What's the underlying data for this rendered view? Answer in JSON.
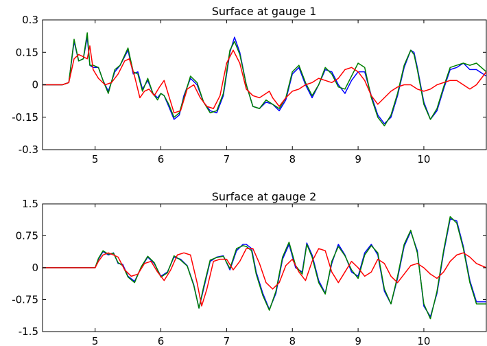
{
  "chart_data": [
    {
      "type": "line",
      "title": "Surface at gauge 1",
      "xlabel": "",
      "ylabel": "",
      "xlim": [
        4.2,
        10.95
      ],
      "ylim": [
        -0.3,
        0.3
      ],
      "xticks": [
        5,
        6,
        7,
        8,
        9,
        10
      ],
      "xtick_labels": [
        "5",
        "6",
        "7",
        "8",
        "9",
        "10"
      ],
      "yticks": [
        0.3,
        0.15,
        0,
        -0.15,
        -0.3
      ],
      "ytick_labels": [
        "0.3",
        "0.15",
        "0",
        "-0.15",
        "-0.3"
      ],
      "grid": false,
      "series": [
        {
          "color": "#0000ff",
          "x": [
            4.2,
            4.5,
            4.6,
            4.68,
            4.75,
            4.82,
            4.88,
            4.92,
            4.97,
            5.05,
            5.12,
            5.2,
            5.3,
            5.38,
            5.5,
            5.58,
            5.65,
            5.72,
            5.8,
            5.88,
            5.95,
            6.0,
            6.05,
            6.12,
            6.2,
            6.28,
            6.35,
            6.45,
            6.55,
            6.65,
            6.75,
            6.85,
            6.95,
            7.05,
            7.12,
            7.2,
            7.3,
            7.4,
            7.5,
            7.6,
            7.7,
            7.8,
            7.9,
            8.0,
            8.1,
            8.2,
            8.3,
            8.4,
            8.5,
            8.6,
            8.7,
            8.8,
            8.9,
            9.0,
            9.1,
            9.2,
            9.3,
            9.4,
            9.5,
            9.6,
            9.7,
            9.8,
            9.85,
            9.9,
            10.0,
            10.1,
            10.2,
            10.3,
            10.4,
            10.5,
            10.6,
            10.7,
            10.8,
            10.95
          ],
          "y": [
            0.0,
            0.0,
            0.01,
            0.2,
            0.11,
            0.12,
            0.22,
            0.09,
            0.08,
            0.08,
            0.02,
            -0.03,
            0.06,
            0.09,
            0.16,
            0.05,
            0.06,
            -0.02,
            0.02,
            -0.04,
            -0.06,
            -0.04,
            -0.05,
            -0.1,
            -0.16,
            -0.14,
            -0.05,
            0.03,
            0.0,
            -0.08,
            -0.12,
            -0.13,
            -0.05,
            0.15,
            0.22,
            0.15,
            0.0,
            -0.1,
            -0.11,
            -0.08,
            -0.09,
            -0.12,
            -0.07,
            0.05,
            0.08,
            0.0,
            -0.06,
            0.0,
            0.07,
            0.06,
            0.0,
            -0.04,
            0.02,
            0.06,
            0.06,
            -0.05,
            -0.14,
            -0.18,
            -0.15,
            -0.05,
            0.08,
            0.16,
            0.15,
            0.08,
            -0.08,
            -0.16,
            -0.12,
            -0.02,
            0.07,
            0.08,
            0.1,
            0.07,
            0.07,
            0.04
          ]
        },
        {
          "color": "#008000",
          "x": [
            4.2,
            4.5,
            4.6,
            4.68,
            4.75,
            4.82,
            4.88,
            4.92,
            4.97,
            5.05,
            5.12,
            5.2,
            5.3,
            5.38,
            5.5,
            5.58,
            5.65,
            5.72,
            5.8,
            5.88,
            5.95,
            6.0,
            6.05,
            6.12,
            6.2,
            6.28,
            6.35,
            6.45,
            6.55,
            6.65,
            6.75,
            6.85,
            6.95,
            7.05,
            7.12,
            7.2,
            7.3,
            7.4,
            7.5,
            7.6,
            7.7,
            7.8,
            7.9,
            8.0,
            8.1,
            8.2,
            8.3,
            8.4,
            8.5,
            8.6,
            8.7,
            8.8,
            8.9,
            9.0,
            9.1,
            9.2,
            9.3,
            9.4,
            9.5,
            9.6,
            9.7,
            9.8,
            9.85,
            9.9,
            10.0,
            10.1,
            10.2,
            10.3,
            10.4,
            10.5,
            10.6,
            10.7,
            10.8,
            10.95
          ],
          "y": [
            0.0,
            0.0,
            0.01,
            0.21,
            0.11,
            0.12,
            0.24,
            0.09,
            0.09,
            0.08,
            0.02,
            -0.04,
            0.07,
            0.09,
            0.17,
            0.06,
            0.05,
            -0.03,
            0.03,
            -0.04,
            -0.07,
            -0.04,
            -0.05,
            -0.09,
            -0.15,
            -0.13,
            -0.06,
            0.04,
            0.01,
            -0.08,
            -0.13,
            -0.12,
            -0.04,
            0.16,
            0.2,
            0.14,
            0.0,
            -0.1,
            -0.11,
            -0.07,
            -0.09,
            -0.11,
            -0.06,
            0.06,
            0.09,
            0.01,
            -0.05,
            0.0,
            0.08,
            0.05,
            -0.01,
            -0.02,
            0.04,
            0.1,
            0.08,
            -0.06,
            -0.15,
            -0.19,
            -0.14,
            -0.04,
            0.09,
            0.16,
            0.14,
            0.07,
            -0.09,
            -0.16,
            -0.11,
            -0.01,
            0.08,
            0.09,
            0.1,
            0.09,
            0.1,
            0.06
          ]
        },
        {
          "color": "#ff0000",
          "x": [
            4.2,
            4.5,
            4.6,
            4.68,
            4.75,
            4.82,
            4.88,
            4.92,
            4.97,
            5.05,
            5.15,
            5.25,
            5.35,
            5.45,
            5.52,
            5.6,
            5.68,
            5.75,
            5.82,
            5.9,
            5.98,
            6.05,
            6.12,
            6.2,
            6.3,
            6.4,
            6.5,
            6.6,
            6.7,
            6.8,
            6.9,
            7.0,
            7.1,
            7.2,
            7.3,
            7.4,
            7.5,
            7.6,
            7.65,
            7.7,
            7.8,
            7.9,
            8.0,
            8.1,
            8.2,
            8.3,
            8.4,
            8.5,
            8.6,
            8.7,
            8.8,
            8.9,
            9.0,
            9.1,
            9.2,
            9.3,
            9.4,
            9.5,
            9.6,
            9.7,
            9.8,
            9.9,
            10.0,
            10.1,
            10.2,
            10.3,
            10.4,
            10.5,
            10.6,
            10.7,
            10.8,
            10.95
          ],
          "y": [
            0.0,
            0.0,
            0.01,
            0.12,
            0.14,
            0.13,
            0.12,
            0.18,
            0.07,
            0.03,
            0.0,
            0.01,
            0.05,
            0.11,
            0.12,
            0.04,
            -0.06,
            -0.03,
            -0.02,
            -0.05,
            -0.01,
            0.02,
            -0.05,
            -0.13,
            -0.12,
            -0.02,
            0.0,
            -0.06,
            -0.1,
            -0.11,
            -0.05,
            0.1,
            0.16,
            0.1,
            -0.02,
            -0.05,
            -0.06,
            -0.04,
            -0.03,
            -0.06,
            -0.1,
            -0.06,
            -0.03,
            -0.02,
            0.0,
            0.01,
            0.03,
            0.02,
            0.01,
            0.03,
            0.07,
            0.08,
            0.06,
            0.02,
            -0.05,
            -0.09,
            -0.06,
            -0.03,
            -0.01,
            0.0,
            0.0,
            -0.02,
            -0.03,
            -0.02,
            0.0,
            0.01,
            0.02,
            0.02,
            0.0,
            -0.02,
            0.0,
            0.06
          ]
        }
      ]
    },
    {
      "type": "line",
      "title": "Surface at gauge 2",
      "xlabel": "",
      "ylabel": "",
      "xlim": [
        4.2,
        10.95
      ],
      "ylim": [
        -1.5,
        1.5
      ],
      "xticks": [
        5,
        6,
        7,
        8,
        9,
        10
      ],
      "xtick_labels": [
        "5",
        "6",
        "7",
        "8",
        "9",
        "10"
      ],
      "yticks": [
        1.5,
        0.75,
        0,
        -0.75,
        -1.5
      ],
      "ytick_labels": [
        "1.5",
        "0.75",
        "0",
        "-0.75",
        "-1.5"
      ],
      "grid": false,
      "series": [
        {
          "color": "#0000ff",
          "x": [
            4.2,
            5.0,
            5.05,
            5.12,
            5.2,
            5.28,
            5.35,
            5.42,
            5.5,
            5.6,
            5.7,
            5.8,
            5.9,
            6.0,
            6.1,
            6.2,
            6.3,
            6.4,
            6.5,
            6.58,
            6.65,
            6.75,
            6.85,
            6.95,
            7.05,
            7.15,
            7.25,
            7.3,
            7.38,
            7.45,
            7.55,
            7.65,
            7.75,
            7.85,
            7.95,
            8.05,
            8.15,
            8.22,
            8.3,
            8.4,
            8.5,
            8.6,
            8.7,
            8.8,
            8.9,
            9.0,
            9.1,
            9.2,
            9.3,
            9.4,
            9.5,
            9.6,
            9.7,
            9.8,
            9.9,
            10.0,
            10.1,
            10.2,
            10.3,
            10.4,
            10.5,
            10.6,
            10.7,
            10.8,
            10.95
          ],
          "y": [
            0.0,
            0.0,
            0.2,
            0.38,
            0.3,
            0.35,
            0.1,
            0.08,
            -0.2,
            -0.32,
            0.0,
            0.25,
            0.1,
            -0.2,
            -0.1,
            0.25,
            0.2,
            0.05,
            -0.4,
            -0.95,
            -0.5,
            0.15,
            0.25,
            0.28,
            -0.05,
            0.4,
            0.55,
            0.55,
            0.45,
            -0.1,
            -0.6,
            -0.98,
            -0.6,
            0.2,
            0.55,
            0.0,
            -0.1,
            0.58,
            0.3,
            -0.3,
            -0.6,
            0.1,
            0.55,
            0.3,
            -0.1,
            -0.2,
            0.35,
            0.55,
            0.3,
            -0.55,
            -0.85,
            -0.25,
            0.5,
            0.85,
            0.4,
            -0.9,
            -1.15,
            -0.6,
            0.35,
            1.15,
            1.1,
            0.5,
            -0.3,
            -0.8,
            -0.8
          ]
        },
        {
          "color": "#008000",
          "x": [
            4.2,
            5.0,
            5.05,
            5.12,
            5.2,
            5.28,
            5.35,
            5.42,
            5.5,
            5.6,
            5.7,
            5.8,
            5.9,
            6.0,
            6.1,
            6.2,
            6.3,
            6.4,
            6.5,
            6.58,
            6.65,
            6.75,
            6.85,
            6.95,
            7.05,
            7.15,
            7.25,
            7.3,
            7.38,
            7.45,
            7.55,
            7.65,
            7.75,
            7.85,
            7.95,
            8.05,
            8.15,
            8.22,
            8.3,
            8.4,
            8.5,
            8.6,
            8.7,
            8.8,
            8.9,
            9.0,
            9.1,
            9.2,
            9.3,
            9.4,
            9.5,
            9.6,
            9.7,
            9.8,
            9.9,
            10.0,
            10.1,
            10.2,
            10.3,
            10.4,
            10.5,
            10.6,
            10.7,
            10.8,
            10.95
          ],
          "y": [
            0.0,
            0.0,
            0.22,
            0.4,
            0.32,
            0.34,
            0.12,
            0.05,
            -0.22,
            -0.35,
            0.02,
            0.27,
            0.12,
            -0.22,
            -0.12,
            0.28,
            0.18,
            0.04,
            -0.42,
            -0.95,
            -0.45,
            0.18,
            0.24,
            0.27,
            -0.02,
            0.45,
            0.52,
            0.5,
            0.4,
            -0.15,
            -0.65,
            -1.0,
            -0.55,
            0.25,
            0.6,
            0.05,
            -0.15,
            0.55,
            0.25,
            -0.35,
            -0.62,
            0.15,
            0.5,
            0.28,
            -0.05,
            -0.25,
            0.3,
            0.52,
            0.35,
            -0.5,
            -0.85,
            -0.2,
            0.55,
            0.88,
            0.35,
            -0.85,
            -1.2,
            -0.55,
            0.4,
            1.2,
            1.05,
            0.45,
            -0.35,
            -0.85,
            -0.85
          ]
        },
        {
          "color": "#ff0000",
          "x": [
            4.2,
            5.0,
            5.05,
            5.12,
            5.2,
            5.28,
            5.35,
            5.45,
            5.55,
            5.65,
            5.75,
            5.85,
            5.95,
            6.05,
            6.15,
            6.25,
            6.35,
            6.45,
            6.55,
            6.62,
            6.7,
            6.8,
            6.9,
            7.0,
            7.1,
            7.2,
            7.3,
            7.4,
            7.5,
            7.6,
            7.7,
            7.8,
            7.9,
            8.0,
            8.1,
            8.2,
            8.3,
            8.4,
            8.5,
            8.6,
            8.7,
            8.8,
            8.9,
            9.0,
            9.1,
            9.2,
            9.3,
            9.4,
            9.5,
            9.6,
            9.7,
            9.8,
            9.9,
            10.0,
            10.1,
            10.2,
            10.3,
            10.4,
            10.5,
            10.6,
            10.7,
            10.8,
            10.95
          ],
          "y": [
            0.0,
            0.0,
            0.15,
            0.3,
            0.35,
            0.3,
            0.25,
            -0.05,
            -0.2,
            -0.15,
            0.1,
            0.15,
            -0.1,
            -0.3,
            -0.05,
            0.3,
            0.35,
            0.3,
            -0.35,
            -0.9,
            -0.5,
            0.15,
            0.2,
            0.2,
            -0.05,
            0.15,
            0.45,
            0.45,
            0.1,
            -0.35,
            -0.5,
            -0.35,
            0.05,
            0.2,
            -0.1,
            -0.3,
            0.15,
            0.45,
            0.4,
            -0.1,
            -0.35,
            -0.1,
            0.15,
            0.0,
            -0.2,
            -0.1,
            0.2,
            0.1,
            -0.2,
            -0.35,
            -0.15,
            0.05,
            0.1,
            0.0,
            -0.15,
            -0.25,
            -0.1,
            0.15,
            0.3,
            0.35,
            0.25,
            0.1,
            0.0
          ]
        }
      ]
    }
  ]
}
